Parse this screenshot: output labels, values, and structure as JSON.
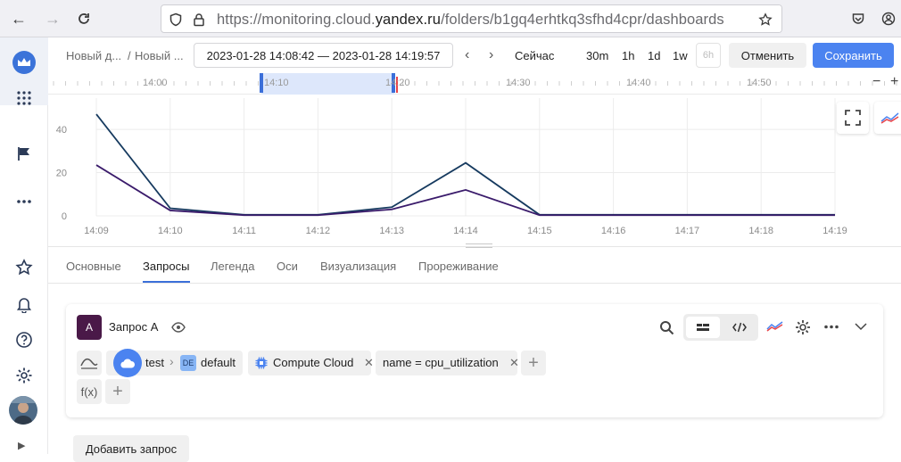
{
  "browser": {
    "url_prefix": "https://monitoring.cloud.",
    "url_domain": "yandex.ru",
    "url_path": "/folders/b1gq4erhtkq3sfhd4cpr/dashboards"
  },
  "toolbar": {
    "crumb_1": "Новый д...",
    "crumb_sep": "/",
    "crumb_2": "Новый ...",
    "time_range": "2023-01-28 14:08:42 — 2023-01-28 14:19:57",
    "now_label": "Сейчас",
    "presets": [
      "30m",
      "1h",
      "1d",
      "1w",
      "6h"
    ],
    "cancel_label": "Отменить",
    "save_label": "Сохранить"
  },
  "timeline": {
    "labels": [
      "14:00",
      "14:10",
      "14:20",
      "14:30",
      "14:40",
      "14:50"
    ]
  },
  "chart_data": {
    "type": "line",
    "x": [
      "14:09",
      "14:10",
      "14:11",
      "14:12",
      "14:13",
      "14:14",
      "14:15",
      "14:16",
      "14:17",
      "14:18",
      "14:19"
    ],
    "yticks": [
      0,
      20,
      40
    ],
    "ylim": [
      0,
      52
    ],
    "series": [
      {
        "color": "#163a5f",
        "values": [
          47,
          3.5,
          0.5,
          0.5,
          4,
          24.5,
          0.5,
          0.5,
          0.5,
          0.5,
          0.5
        ]
      },
      {
        "color": "#3a1b6b",
        "values": [
          23.5,
          2.5,
          0.3,
          0.3,
          3,
          12,
          0.3,
          0.3,
          0.3,
          0.3,
          0.3
        ]
      }
    ],
    "grid": true
  },
  "tabs": [
    "Основные",
    "Запросы",
    "Легенда",
    "Оси",
    "Визуализация",
    "Прореживание"
  ],
  "query": {
    "letter": "A",
    "title": "Запрос A",
    "cloud": "test",
    "folder_badge": "DE",
    "folder": "default",
    "service": "Compute Cloud",
    "label_filter": "name = cpu_utilization",
    "fx_label": "f(x)"
  },
  "add_query_label": "Добавить запрос"
}
